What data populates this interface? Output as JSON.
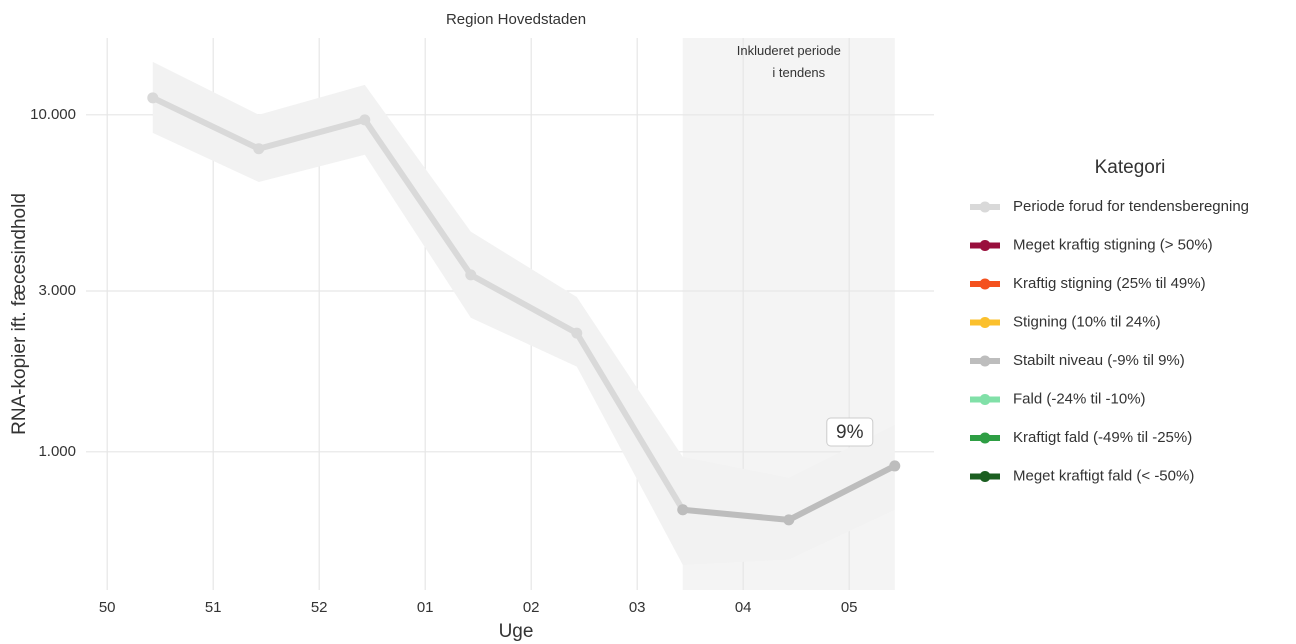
{
  "chart_data": {
    "type": "line",
    "title": "Region Hovedstaden",
    "x_label": "Uge",
    "y_label": "RNA-kopier ift. fæcesindhold",
    "x": [
      0.43,
      1.43,
      2.43,
      3.43,
      4.43,
      5.43,
      6.43,
      7.43
    ],
    "series": [
      {
        "color": "#d9d9d9",
        "values": [
          11230,
          7930,
          9660,
          3350,
          2250,
          673,
          null,
          null
        ]
      },
      {
        "color": "#bdbdbd",
        "values": [
          null,
          null,
          null,
          null,
          null,
          673,
          628,
          908
        ]
      }
    ],
    "band_upper": [
      14360,
      10000,
      12270,
      4500,
      2880,
      966,
      837,
      1203
    ],
    "band_lower": [
      8840,
      6320,
      7610,
      2500,
      1790,
      462,
      479,
      673
    ],
    "band_color": "#f2f2f2",
    "highlight_xlim": [
      5.43,
      7.43
    ],
    "highlight_label": "Inkluderet periode\ni tendens",
    "trend_label": "9%",
    "xlim": [
      -0.2,
      7.8
    ],
    "xticks": [
      {
        "value": 0,
        "label": "50"
      },
      {
        "value": 1,
        "label": "51"
      },
      {
        "value": 2,
        "label": "52"
      },
      {
        "value": 3,
        "label": "01"
      },
      {
        "value": 4,
        "label": "02"
      },
      {
        "value": 5,
        "label": "03"
      },
      {
        "value": 6,
        "label": "04"
      },
      {
        "value": 7,
        "label": "05"
      }
    ],
    "ylim": [
      389,
      16900
    ],
    "log_y": true,
    "yticks": [
      {
        "value": 1000,
        "label": "1.000"
      },
      {
        "value": 3000,
        "label": "3.000"
      },
      {
        "value": 10000,
        "label": "10.000"
      }
    ],
    "grid": true,
    "legend_title": "Kategori",
    "legend": [
      {
        "name": "Periode forud for tendensberegning",
        "color": "#d9d9d9"
      },
      {
        "name": "Meget kraftig stigning (> 50%)",
        "color": "#990f3d"
      },
      {
        "name": "Kraftig stigning (25% til 49%)",
        "color": "#f4511e"
      },
      {
        "name": "Stigning (10% til 24%)",
        "color": "#fbc02d"
      },
      {
        "name": "Stabilt niveau (-9% til 9%)",
        "color": "#bdbdbd"
      },
      {
        "name": "Fald (-24% til -10%)",
        "color": "#81e0a8"
      },
      {
        "name": "Kraftigt fald (-49% til -25%)",
        "color": "#2e9e44"
      },
      {
        "name": "Meget kraftigt fald (< -50%)",
        "color": "#1b5e20"
      }
    ]
  }
}
